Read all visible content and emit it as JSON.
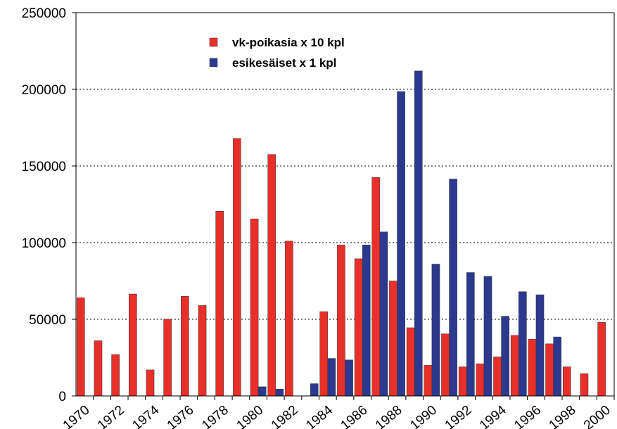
{
  "chart_data": {
    "type": "bar",
    "categories": [
      "1970",
      null,
      "1972",
      null,
      "1974",
      null,
      "1976",
      null,
      "1978",
      null,
      "1980",
      null,
      "1982",
      null,
      "1984",
      null,
      "1986",
      null,
      "1988",
      null,
      "1990",
      null,
      "1992",
      null,
      "1994",
      null,
      "1996",
      null,
      "1998",
      null,
      "2000"
    ],
    "series": [
      {
        "name": "vk-poikasia x 10 kpl",
        "color": "#e8302a",
        "values": [
          64000,
          36000,
          27000,
          66500,
          17000,
          50000,
          65000,
          59000,
          120500,
          168000,
          115500,
          157500,
          101000,
          null,
          55000,
          98500,
          89500,
          142500,
          75000,
          44500,
          20000,
          40500,
          19000,
          21000,
          25500,
          39500,
          37000,
          34000,
          19000,
          14500,
          48000
        ]
      },
      {
        "name": "esikesäiset x 1 kpl",
        "color": "#2b3a8f",
        "values": [
          null,
          null,
          null,
          null,
          null,
          null,
          null,
          null,
          null,
          null,
          6000,
          4500,
          null,
          8000,
          24500,
          23500,
          98500,
          107000,
          198500,
          212000,
          86000,
          141500,
          80500,
          78000,
          52000,
          68000,
          66000,
          38500,
          null,
          null,
          null
        ]
      }
    ],
    "ylim": [
      0,
      250000
    ],
    "yticks": [
      0,
      50000,
      100000,
      150000,
      200000,
      250000
    ],
    "grid": true
  }
}
